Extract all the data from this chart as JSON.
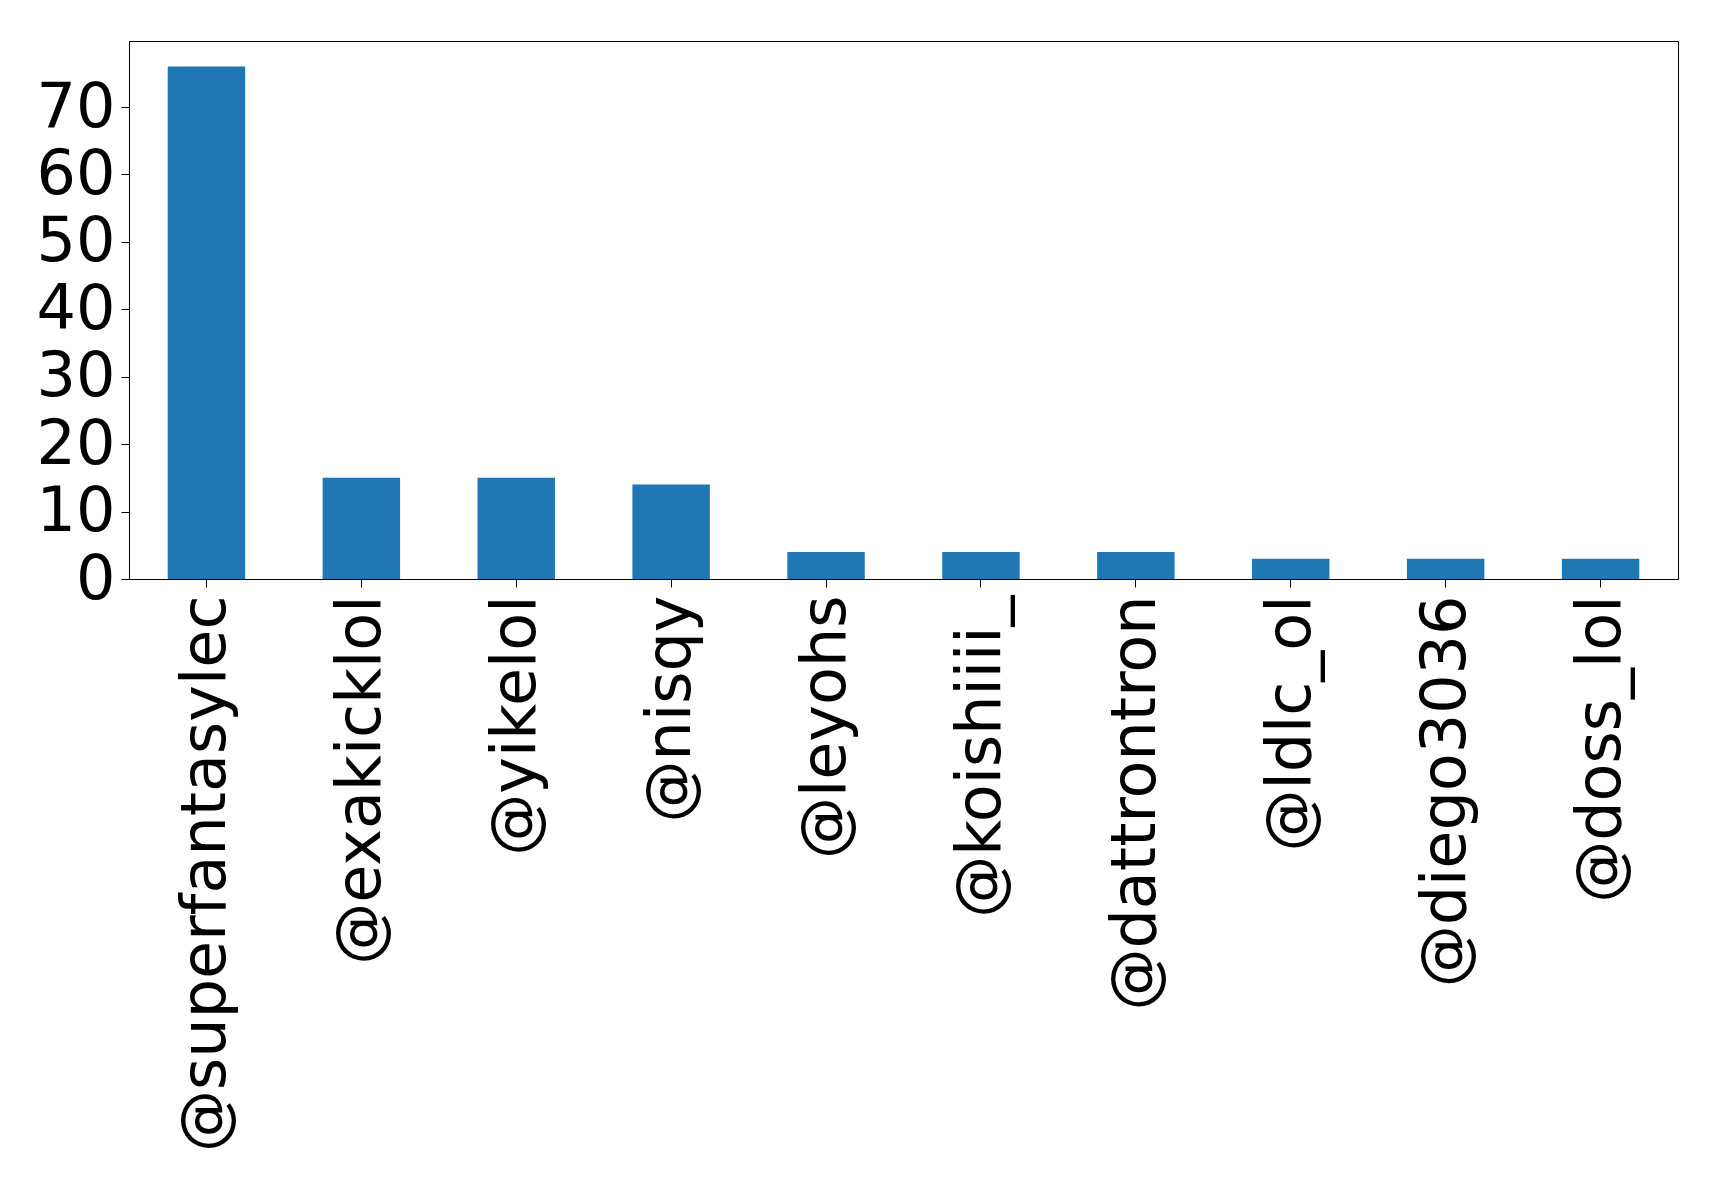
{
  "chart_data": {
    "type": "bar",
    "categories": [
      "@superfantasylec",
      "@exakicklol",
      "@yikelol",
      "@nisqy",
      "@leyohs",
      "@koishiiii_",
      "@dattrontron",
      "@ldlc_ol",
      "@diego3036",
      "@doss_lol"
    ],
    "values": [
      76,
      15,
      15,
      14,
      4,
      4,
      4,
      3,
      3,
      3
    ],
    "color": "#1f77b4",
    "ylim": [
      0,
      79.8
    ],
    "yticks": [
      0,
      10,
      20,
      30,
      40,
      50,
      60,
      70
    ]
  }
}
